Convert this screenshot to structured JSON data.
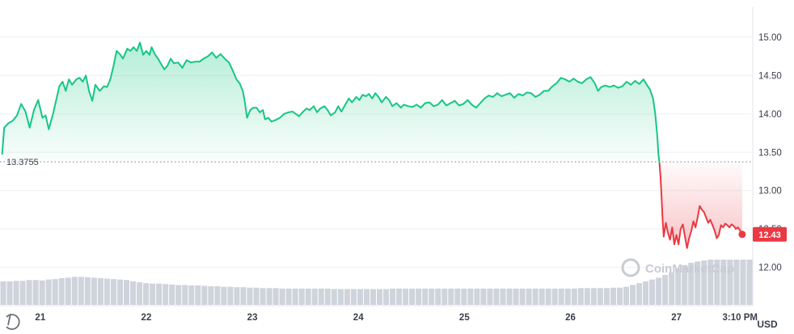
{
  "chart_data": {
    "type": "line",
    "title": "",
    "currency_unit": "USD",
    "reference": {
      "value": 13.3755,
      "label": "13.3755"
    },
    "last_price": {
      "value": 12.43,
      "label": "12.43"
    },
    "ylim": [
      11.5,
      15.4
    ],
    "y_ticks": [
      {
        "value": 12.0,
        "label": "12.00"
      },
      {
        "value": 12.5,
        "label": "12.50"
      },
      {
        "value": 13.0,
        "label": "13.00"
      },
      {
        "value": 13.5,
        "label": "13.50"
      },
      {
        "value": 14.0,
        "label": "14.00"
      },
      {
        "value": 14.5,
        "label": "14.50"
      },
      {
        "value": 15.0,
        "label": "15.00"
      }
    ],
    "x_ticks": [
      {
        "day": 21,
        "label": "21"
      },
      {
        "day": 22,
        "label": "22"
      },
      {
        "day": 23,
        "label": "23"
      },
      {
        "day": 24,
        "label": "24"
      },
      {
        "day": 25,
        "label": "25"
      },
      {
        "day": 26,
        "label": "26"
      },
      {
        "day": 27,
        "label": "27"
      },
      {
        "day": 27.6,
        "label": "3:10 PM"
      }
    ],
    "xlim": [
      20.62,
      27.72
    ],
    "colors": {
      "up": "#16c784",
      "down": "#ea3943",
      "volume": "#cfd3db"
    },
    "series": [
      {
        "points": [
          [
            20.64,
            13.47
          ],
          [
            20.66,
            13.82
          ],
          [
            20.7,
            13.88
          ],
          [
            20.74,
            13.91
          ],
          [
            20.78,
            13.98
          ],
          [
            20.82,
            14.13
          ],
          [
            20.86,
            14.03
          ],
          [
            20.9,
            13.82
          ],
          [
            20.94,
            14.05
          ],
          [
            20.98,
            14.18
          ],
          [
            21.02,
            13.95
          ],
          [
            21.05,
            13.98
          ],
          [
            21.08,
            13.8
          ],
          [
            21.12,
            14.0
          ],
          [
            21.15,
            14.18
          ],
          [
            21.18,
            14.36
          ],
          [
            21.21,
            14.42
          ],
          [
            21.24,
            14.3
          ],
          [
            21.27,
            14.45
          ],
          [
            21.3,
            14.38
          ],
          [
            21.34,
            14.45
          ],
          [
            21.37,
            14.47
          ],
          [
            21.4,
            14.42
          ],
          [
            21.43,
            14.5
          ],
          [
            21.46,
            14.3
          ],
          [
            21.49,
            14.17
          ],
          [
            21.52,
            14.38
          ],
          [
            21.56,
            14.3
          ],
          [
            21.6,
            14.36
          ],
          [
            21.63,
            14.35
          ],
          [
            21.66,
            14.45
          ],
          [
            21.69,
            14.62
          ],
          [
            21.72,
            14.82
          ],
          [
            21.75,
            14.78
          ],
          [
            21.78,
            14.72
          ],
          [
            21.82,
            14.85
          ],
          [
            21.85,
            14.82
          ],
          [
            21.88,
            14.87
          ],
          [
            21.91,
            14.82
          ],
          [
            21.94,
            14.93
          ],
          [
            21.97,
            14.77
          ],
          [
            22.0,
            14.82
          ],
          [
            22.03,
            14.77
          ],
          [
            22.05,
            14.87
          ],
          [
            22.08,
            14.78
          ],
          [
            22.11,
            14.72
          ],
          [
            22.14,
            14.65
          ],
          [
            22.17,
            14.58
          ],
          [
            22.2,
            14.63
          ],
          [
            22.23,
            14.72
          ],
          [
            22.26,
            14.66
          ],
          [
            22.3,
            14.67
          ],
          [
            22.34,
            14.6
          ],
          [
            22.38,
            14.7
          ],
          [
            22.42,
            14.67
          ],
          [
            22.46,
            14.68
          ],
          [
            22.5,
            14.68
          ],
          [
            22.54,
            14.72
          ],
          [
            22.58,
            14.75
          ],
          [
            22.62,
            14.8
          ],
          [
            22.66,
            14.73
          ],
          [
            22.7,
            14.78
          ],
          [
            22.74,
            14.72
          ],
          [
            22.78,
            14.67
          ],
          [
            22.82,
            14.55
          ],
          [
            22.85,
            14.45
          ],
          [
            22.88,
            14.4
          ],
          [
            22.91,
            14.3
          ],
          [
            22.93,
            14.15
          ],
          [
            22.95,
            13.95
          ],
          [
            22.98,
            14.05
          ],
          [
            23.01,
            14.08
          ],
          [
            23.04,
            14.08
          ],
          [
            23.07,
            14.02
          ],
          [
            23.1,
            14.05
          ],
          [
            23.12,
            13.93
          ],
          [
            23.15,
            13.95
          ],
          [
            23.18,
            13.9
          ],
          [
            23.22,
            13.92
          ],
          [
            23.26,
            13.95
          ],
          [
            23.3,
            14.0
          ],
          [
            23.34,
            14.02
          ],
          [
            23.38,
            14.03
          ],
          [
            23.41,
            14.0
          ],
          [
            23.44,
            13.97
          ],
          [
            23.48,
            14.03
          ],
          [
            23.51,
            14.07
          ],
          [
            23.54,
            14.05
          ],
          [
            23.58,
            14.1
          ],
          [
            23.61,
            14.02
          ],
          [
            23.64,
            14.07
          ],
          [
            23.68,
            14.1
          ],
          [
            23.71,
            14.05
          ],
          [
            23.74,
            13.98
          ],
          [
            23.78,
            14.02
          ],
          [
            23.81,
            14.1
          ],
          [
            23.84,
            14.03
          ],
          [
            23.88,
            14.13
          ],
          [
            23.91,
            14.2
          ],
          [
            23.94,
            14.15
          ],
          [
            23.98,
            14.22
          ],
          [
            24.01,
            14.18
          ],
          [
            24.04,
            14.25
          ],
          [
            24.07,
            14.23
          ],
          [
            24.1,
            14.26
          ],
          [
            24.13,
            14.2
          ],
          [
            24.16,
            14.27
          ],
          [
            24.19,
            14.22
          ],
          [
            24.22,
            14.15
          ],
          [
            24.26,
            14.22
          ],
          [
            24.29,
            14.18
          ],
          [
            24.32,
            14.1
          ],
          [
            24.36,
            14.14
          ],
          [
            24.4,
            14.08
          ],
          [
            24.43,
            14.12
          ],
          [
            24.47,
            14.1
          ],
          [
            24.51,
            14.09
          ],
          [
            24.55,
            14.12
          ],
          [
            24.59,
            14.08
          ],
          [
            24.63,
            14.14
          ],
          [
            24.67,
            14.15
          ],
          [
            24.71,
            14.1
          ],
          [
            24.75,
            14.12
          ],
          [
            24.79,
            14.18
          ],
          [
            24.83,
            14.11
          ],
          [
            24.87,
            14.14
          ],
          [
            24.91,
            14.17
          ],
          [
            24.95,
            14.11
          ],
          [
            24.99,
            14.13
          ],
          [
            25.03,
            14.18
          ],
          [
            25.07,
            14.12
          ],
          [
            25.11,
            14.08
          ],
          [
            25.15,
            14.14
          ],
          [
            25.19,
            14.2
          ],
          [
            25.23,
            14.24
          ],
          [
            25.27,
            14.22
          ],
          [
            25.31,
            14.27
          ],
          [
            25.35,
            14.23
          ],
          [
            25.39,
            14.25
          ],
          [
            25.43,
            14.27
          ],
          [
            25.47,
            14.21
          ],
          [
            25.51,
            14.26
          ],
          [
            25.55,
            14.24
          ],
          [
            25.59,
            14.28
          ],
          [
            25.63,
            14.27
          ],
          [
            25.67,
            14.22
          ],
          [
            25.71,
            14.25
          ],
          [
            25.75,
            14.3
          ],
          [
            25.79,
            14.3
          ],
          [
            25.83,
            14.36
          ],
          [
            25.87,
            14.4
          ],
          [
            25.91,
            14.47
          ],
          [
            25.95,
            14.45
          ],
          [
            25.99,
            14.42
          ],
          [
            26.03,
            14.46
          ],
          [
            26.07,
            14.42
          ],
          [
            26.11,
            14.4
          ],
          [
            26.15,
            14.45
          ],
          [
            26.19,
            14.48
          ],
          [
            26.23,
            14.4
          ],
          [
            26.26,
            14.3
          ],
          [
            26.29,
            14.35
          ],
          [
            26.33,
            14.37
          ],
          [
            26.37,
            14.35
          ],
          [
            26.41,
            14.37
          ],
          [
            26.45,
            14.34
          ],
          [
            26.49,
            14.36
          ],
          [
            26.53,
            14.42
          ],
          [
            26.57,
            14.38
          ],
          [
            26.61,
            14.43
          ],
          [
            26.65,
            14.39
          ],
          [
            26.69,
            14.45
          ],
          [
            26.72,
            14.38
          ],
          [
            26.75,
            14.32
          ],
          [
            26.78,
            14.2
          ],
          [
            26.8,
            14.0
          ],
          [
            26.82,
            13.7
          ],
          [
            26.83,
            13.48
          ],
          [
            26.84,
            13.36
          ]
        ]
      },
      {
        "points": [
          [
            26.84,
            13.36
          ],
          [
            26.85,
            13.18
          ],
          [
            26.86,
            12.92
          ],
          [
            26.87,
            12.62
          ],
          [
            26.88,
            12.4
          ],
          [
            26.9,
            12.58
          ],
          [
            26.92,
            12.45
          ],
          [
            26.94,
            12.36
          ],
          [
            26.96,
            12.52
          ],
          [
            26.98,
            12.3
          ],
          [
            27.0,
            12.42
          ],
          [
            27.02,
            12.3
          ],
          [
            27.04,
            12.5
          ],
          [
            27.06,
            12.56
          ],
          [
            27.08,
            12.4
          ],
          [
            27.1,
            12.25
          ],
          [
            27.12,
            12.38
          ],
          [
            27.14,
            12.47
          ],
          [
            27.16,
            12.6
          ],
          [
            27.18,
            12.52
          ],
          [
            27.2,
            12.65
          ],
          [
            27.22,
            12.8
          ],
          [
            27.24,
            12.75
          ],
          [
            27.26,
            12.72
          ],
          [
            27.28,
            12.65
          ],
          [
            27.3,
            12.58
          ],
          [
            27.32,
            12.62
          ],
          [
            27.34,
            12.55
          ],
          [
            27.36,
            12.48
          ],
          [
            27.38,
            12.38
          ],
          [
            27.4,
            12.42
          ],
          [
            27.42,
            12.55
          ],
          [
            27.44,
            12.52
          ],
          [
            27.46,
            12.57
          ],
          [
            27.48,
            12.55
          ],
          [
            27.5,
            12.52
          ],
          [
            27.52,
            12.56
          ],
          [
            27.54,
            12.54
          ],
          [
            27.56,
            12.5
          ],
          [
            27.58,
            12.52
          ],
          [
            27.6,
            12.48
          ],
          [
            27.62,
            12.43
          ]
        ]
      }
    ],
    "volume": [
      0.52,
      0.52,
      0.53,
      0.53,
      0.55,
      0.55,
      0.54,
      0.56,
      0.57,
      0.59,
      0.6,
      0.62,
      0.62,
      0.61,
      0.6,
      0.59,
      0.58,
      0.57,
      0.56,
      0.55,
      0.52,
      0.5,
      0.48,
      0.47,
      0.47,
      0.46,
      0.45,
      0.44,
      0.44,
      0.43,
      0.43,
      0.42,
      0.41,
      0.41,
      0.4,
      0.4,
      0.39,
      0.39,
      0.38,
      0.38,
      0.37,
      0.37,
      0.37,
      0.36,
      0.36,
      0.36,
      0.36,
      0.36,
      0.36,
      0.36,
      0.36,
      0.35,
      0.35,
      0.35,
      0.35,
      0.35,
      0.35,
      0.35,
      0.35,
      0.35,
      0.36,
      0.36,
      0.36,
      0.36,
      0.36,
      0.36,
      0.36,
      0.36,
      0.36,
      0.36,
      0.36,
      0.36,
      0.36,
      0.36,
      0.36,
      0.36,
      0.36,
      0.36,
      0.36,
      0.36,
      0.36,
      0.36,
      0.36,
      0.36,
      0.36,
      0.36,
      0.36,
      0.36,
      0.36,
      0.37,
      0.37,
      0.37,
      0.37,
      0.37,
      0.38,
      0.38,
      0.4,
      0.44,
      0.48,
      0.52,
      0.56,
      0.6,
      0.66,
      0.72,
      0.8,
      0.88,
      0.93,
      0.96,
      0.98,
      1.0,
      1.0,
      1.0,
      1.0,
      1.0,
      1.0,
      1.0
    ]
  },
  "watermark": {
    "text": "CoinMarketCap"
  }
}
